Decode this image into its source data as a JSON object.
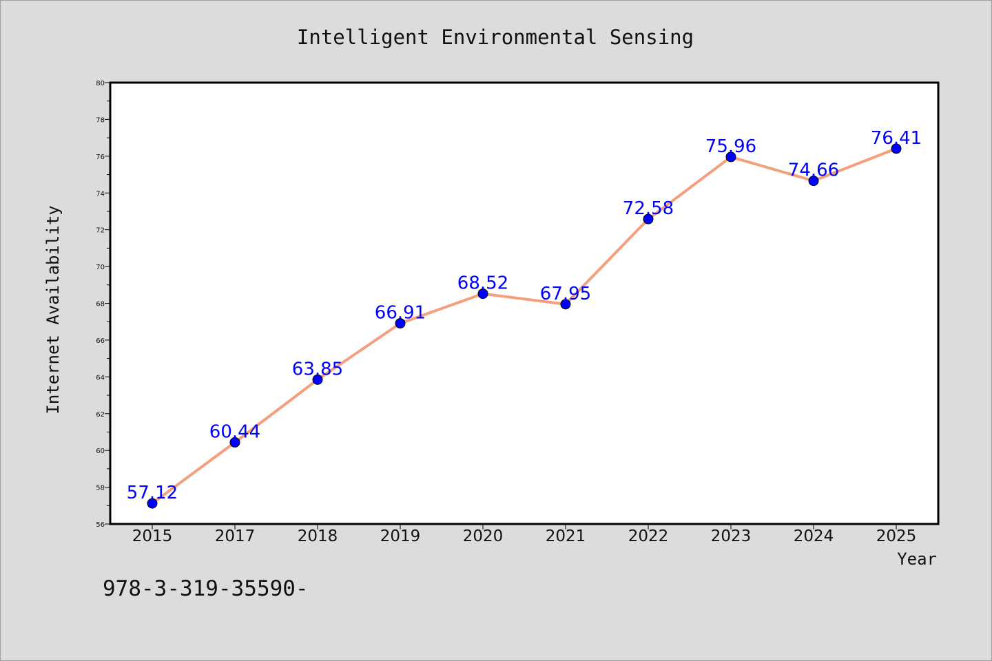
{
  "chart_data": {
    "type": "line",
    "title": "Intelligent Environmental Sensing",
    "xlabel": "Year",
    "ylabel": "Internet Availability",
    "categories": [
      "2015",
      "2017",
      "2018",
      "2019",
      "2020",
      "2021",
      "2022",
      "2023",
      "2024",
      "2025"
    ],
    "series": [
      {
        "values": [
          57.12,
          60.44,
          63.85,
          66.91,
          68.52,
          67.95,
          72.58,
          75.96,
          74.66,
          76.41
        ]
      }
    ],
    "data_labels": [
      "57.12",
      "60.44",
      "63.85",
      "66.91",
      "68.52",
      "67.95",
      "72.58",
      "75.96",
      "74.66",
      "76.41"
    ],
    "ylim": [
      56,
      80
    ],
    "yticks": [
      "56",
      "58",
      "60",
      "62",
      "64",
      "66",
      "68",
      "70",
      "72",
      "74",
      "76",
      "78",
      "80"
    ],
    "grid": false,
    "legend": "none",
    "colors": {
      "line": "#f4a07f",
      "marker": "#0000ff",
      "label": "#0000ff",
      "background": "#dcdcdc",
      "plot_area": "#ffffff"
    }
  },
  "footnote": "978-3-319-35590-"
}
